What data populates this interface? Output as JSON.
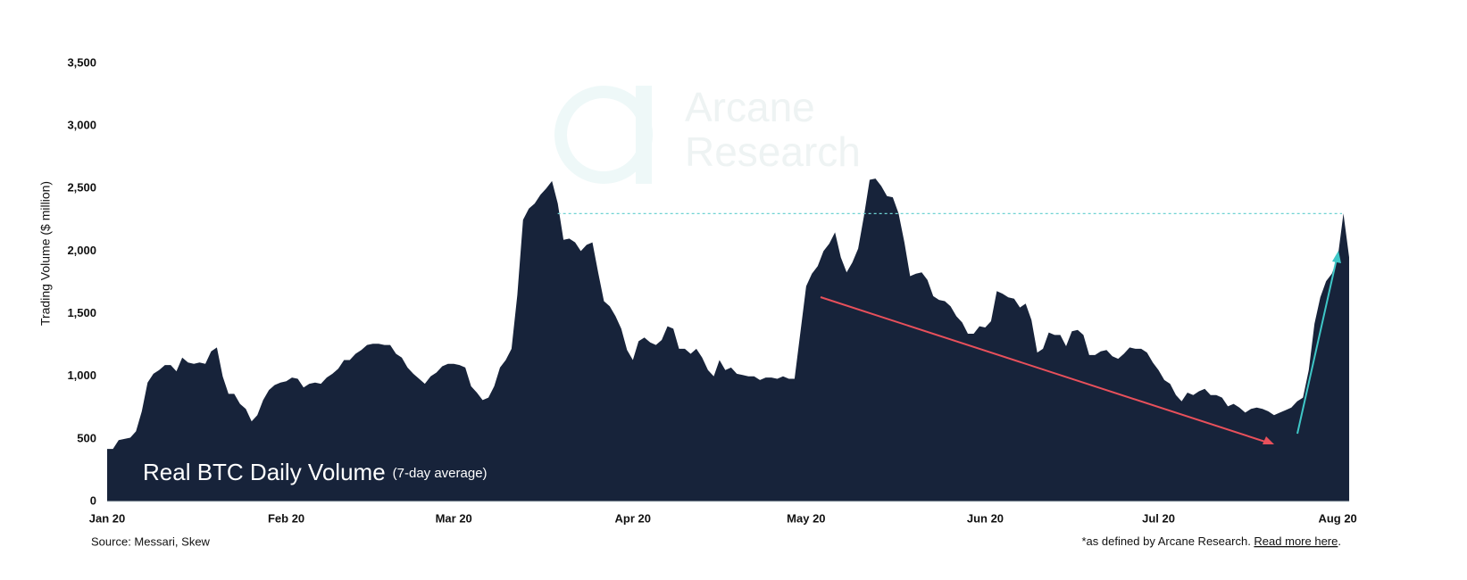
{
  "chart_data": {
    "type": "area",
    "title": "Real BTC Daily Volume",
    "subtitle": "(7-day average)",
    "y_label": "Trading Volume ($ million)",
    "source": "Source: Messari, Skew",
    "footnote": "*as defined by Arcane Research. ",
    "footnote_link": "Read more here",
    "footnote_end": ".",
    "watermark": [
      "Arcane",
      "Research"
    ],
    "color": "#17233a",
    "hline": 2300,
    "hline_color": "#6fd3d3",
    "ylim": [
      0,
      3500
    ],
    "yticks": [
      0,
      500,
      {
        "value": 1000,
        "label": "1,000"
      },
      {
        "value": 1500,
        "label": "1,500"
      },
      {
        "value": 2000,
        "label": "2,000"
      },
      {
        "value": 2500,
        "label": "2,500"
      },
      {
        "value": 3000,
        "label": "3,000"
      },
      {
        "value": 3500,
        "label": "3,500"
      }
    ],
    "categories": [
      "Jan 20",
      null,
      null,
      null,
      null,
      null,
      null,
      null,
      null,
      null,
      null,
      null,
      null,
      null,
      null,
      null,
      null,
      null,
      null,
      null,
      null,
      null,
      null,
      null,
      null,
      null,
      null,
      null,
      null,
      null,
      null,
      "Feb 20",
      null,
      null,
      null,
      null,
      null,
      null,
      null,
      null,
      null,
      null,
      null,
      null,
      null,
      null,
      null,
      null,
      null,
      null,
      null,
      null,
      null,
      null,
      null,
      null,
      null,
      null,
      null,
      null,
      "Mar 20",
      null,
      null,
      null,
      null,
      null,
      null,
      null,
      null,
      null,
      null,
      null,
      null,
      null,
      null,
      null,
      null,
      null,
      null,
      null,
      null,
      null,
      null,
      null,
      null,
      null,
      null,
      null,
      null,
      null,
      null,
      "Apr 20",
      null,
      null,
      null,
      null,
      null,
      null,
      null,
      null,
      null,
      null,
      null,
      null,
      null,
      null,
      null,
      null,
      null,
      null,
      null,
      null,
      null,
      null,
      null,
      null,
      null,
      null,
      null,
      null,
      null,
      "May 20",
      null,
      null,
      null,
      null,
      null,
      null,
      null,
      null,
      null,
      null,
      null,
      null,
      null,
      null,
      null,
      null,
      null,
      null,
      null,
      null,
      null,
      null,
      null,
      null,
      null,
      null,
      null,
      null,
      null,
      null,
      "Jun 20",
      null,
      null,
      null,
      null,
      null,
      null,
      null,
      null,
      null,
      null,
      null,
      null,
      null,
      null,
      null,
      null,
      null,
      null,
      null,
      null,
      null,
      null,
      null,
      null,
      null,
      null,
      null,
      null,
      null,
      "Jul 20",
      null,
      null,
      null,
      null,
      null,
      null,
      null,
      null,
      null,
      null,
      null,
      null,
      null,
      null,
      null,
      null,
      null,
      null,
      null,
      null,
      null,
      null,
      null,
      null,
      null,
      null,
      null,
      null,
      null,
      null,
      "Aug 20",
      null,
      null
    ],
    "values": [
      420,
      420,
      490,
      500,
      510,
      560,
      720,
      950,
      1020,
      1050,
      1090,
      1090,
      1040,
      1150,
      1110,
      1100,
      1110,
      1100,
      1200,
      1230,
      1000,
      860,
      860,
      780,
      740,
      640,
      690,
      810,
      890,
      930,
      950,
      960,
      990,
      980,
      910,
      940,
      950,
      940,
      990,
      1020,
      1060,
      1130,
      1130,
      1180,
      1210,
      1250,
      1260,
      1260,
      1250,
      1250,
      1180,
      1150,
      1070,
      1020,
      980,
      940,
      1000,
      1030,
      1080,
      1100,
      1100,
      1090,
      1070,
      920,
      870,
      810,
      830,
      920,
      1070,
      1130,
      1220,
      1650,
      2250,
      2340,
      2380,
      2450,
      2500,
      2560,
      2380,
      2090,
      2100,
      2070,
      2000,
      2050,
      2070,
      1830,
      1600,
      1560,
      1480,
      1380,
      1210,
      1130,
      1280,
      1310,
      1270,
      1250,
      1290,
      1400,
      1380,
      1220,
      1220,
      1180,
      1220,
      1150,
      1050,
      1000,
      1130,
      1050,
      1070,
      1020,
      1010,
      1000,
      1000,
      970,
      990,
      990,
      980,
      1000,
      980,
      980,
      1350,
      1720,
      1820,
      1880,
      2000,
      2060,
      2150,
      1950,
      1830,
      1910,
      2020,
      2280,
      2570,
      2580,
      2520,
      2440,
      2430,
      2300,
      2070,
      1800,
      1820,
      1830,
      1770,
      1640,
      1610,
      1600,
      1560,
      1480,
      1430,
      1340,
      1340,
      1400,
      1390,
      1440,
      1680,
      1660,
      1630,
      1620,
      1550,
      1580,
      1450,
      1190,
      1220,
      1350,
      1330,
      1330,
      1240,
      1360,
      1370,
      1330,
      1170,
      1170,
      1200,
      1210,
      1160,
      1140,
      1180,
      1230,
      1220,
      1220,
      1190,
      1110,
      1050,
      970,
      940,
      850,
      800,
      870,
      850,
      880,
      900,
      850,
      850,
      830,
      760,
      780,
      750,
      710,
      740,
      750,
      740,
      720,
      690,
      710,
      730,
      750,
      800,
      830,
      1050,
      1420,
      1630,
      1760,
      1820,
      1940,
      2300,
      1950
    ]
  }
}
